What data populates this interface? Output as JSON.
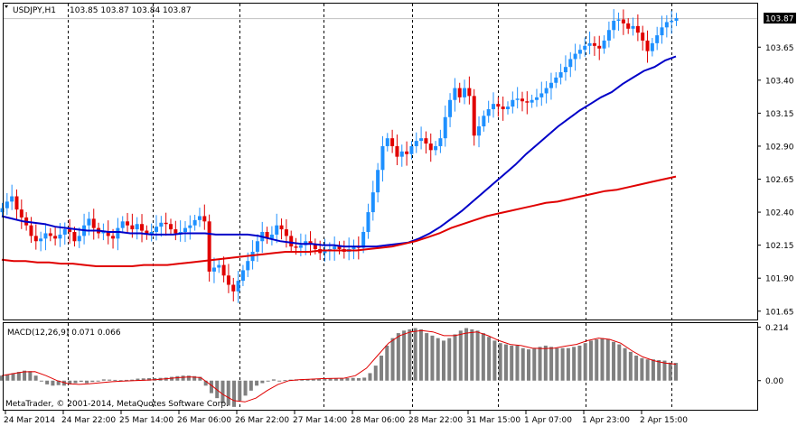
{
  "header": {
    "symbol": "USDJPY,H1",
    "ohlc": "103.85 103.87 103.84 103.87"
  },
  "macd_header": {
    "label": "MACD(12,26,9) 0.071 0.066"
  },
  "footer": {
    "copyright": "MetaTrader, © 2001-2014, MetaQuotes Software Corp."
  },
  "colors": {
    "background": "#ffffff",
    "bull_candle": "#1e90ff",
    "bear_candle": "#e00000",
    "ma_fast": "#0000c8",
    "ma_slow": "#e00000",
    "macd_histogram": "#808080",
    "macd_signal": "#e00000",
    "grid": "#000000"
  },
  "chart_data": [
    {
      "type": "candlestick",
      "title": "USDJPY,H1",
      "current_price": "103.87",
      "ylim": [
        101.58,
        103.98
      ],
      "y_ticks": [
        "103.87",
        "103.65",
        "103.40",
        "103.15",
        "102.90",
        "102.65",
        "102.40",
        "102.15",
        "101.90",
        "101.65"
      ],
      "x_ticks": [
        "24 Mar 2014",
        "24 Mar 22:00",
        "25 Mar 14:00",
        "26 Mar 06:00",
        "26 Mar 22:00",
        "27 Mar 14:00",
        "28 Mar 06:00",
        "28 Mar 22:00",
        "31 Mar 15:00",
        "1 Apr 07:00",
        "1 Apr 23:00",
        "2 Apr 15:00"
      ],
      "candles_close": [
        102.43,
        102.48,
        102.52,
        102.42,
        102.36,
        102.3,
        102.22,
        102.18,
        102.2,
        102.24,
        102.22,
        102.2,
        102.23,
        102.27,
        102.25,
        102.18,
        102.22,
        102.3,
        102.35,
        102.28,
        102.24,
        102.25,
        102.22,
        102.2,
        102.28,
        102.33,
        102.3,
        102.27,
        102.31,
        102.26,
        102.23,
        102.25,
        102.29,
        102.32,
        102.31,
        102.27,
        102.24,
        102.25,
        102.28,
        102.3,
        102.34,
        102.37,
        102.33,
        101.95,
        101.98,
        102.0,
        101.92,
        101.85,
        101.8,
        101.88,
        101.96,
        102.03,
        102.1,
        102.18,
        102.25,
        102.2,
        102.23,
        102.3,
        102.27,
        102.22,
        102.14,
        102.13,
        102.15,
        102.18,
        102.16,
        102.12,
        102.09,
        102.11,
        102.12,
        102.14,
        102.12,
        102.1,
        102.12,
        102.14,
        102.13,
        102.25,
        102.4,
        102.55,
        102.72,
        102.9,
        102.96,
        102.9,
        102.82,
        102.86,
        102.84,
        102.9,
        102.94,
        102.96,
        102.92,
        102.87,
        102.9,
        102.96,
        103.12,
        103.25,
        103.34,
        103.27,
        103.34,
        103.28,
        102.98,
        103.05,
        103.13,
        103.18,
        103.22,
        103.2,
        103.18,
        103.2,
        103.25,
        103.26,
        103.24,
        103.23,
        103.25,
        103.27,
        103.3,
        103.34,
        103.38,
        103.42,
        103.46,
        103.5,
        103.56,
        103.6,
        103.63,
        103.66,
        103.68,
        103.66,
        103.64,
        103.7,
        103.78,
        103.85,
        103.86,
        103.83,
        103.79,
        103.81,
        103.76,
        103.7,
        103.62,
        103.68,
        103.74,
        103.8,
        103.84,
        103.85,
        103.87
      ],
      "ma_fast": [
        102.37,
        102.35,
        102.33,
        102.32,
        102.31,
        102.29,
        102.28,
        102.27,
        102.26,
        102.26,
        102.25,
        102.25,
        102.24,
        102.24,
        102.23,
        102.23,
        102.23,
        102.24,
        102.24,
        102.24,
        102.23,
        102.23,
        102.23,
        102.23,
        102.22,
        102.2,
        102.18,
        102.17,
        102.16,
        102.16,
        102.15,
        102.15,
        102.14,
        102.14,
        102.14,
        102.14,
        102.15,
        102.16,
        102.17,
        102.2,
        102.24,
        102.29,
        102.35,
        102.41,
        102.48,
        102.55,
        102.62,
        102.69,
        102.76,
        102.84,
        102.91,
        102.98,
        103.05,
        103.11,
        103.17,
        103.22,
        103.27,
        103.31,
        103.37,
        103.42,
        103.47,
        103.5,
        103.55,
        103.58
      ],
      "ma_slow": [
        102.04,
        102.03,
        102.03,
        102.02,
        102.02,
        102.01,
        102.01,
        102.0,
        101.99,
        101.99,
        101.99,
        101.99,
        102.0,
        102.0,
        102.0,
        102.01,
        102.02,
        102.03,
        102.04,
        102.05,
        102.06,
        102.07,
        102.08,
        102.09,
        102.1,
        102.1,
        102.1,
        102.11,
        102.11,
        102.11,
        102.11,
        102.12,
        102.13,
        102.14,
        102.16,
        102.18,
        102.21,
        102.24,
        102.28,
        102.31,
        102.34,
        102.37,
        102.39,
        102.41,
        102.43,
        102.45,
        102.47,
        102.48,
        102.5,
        102.52,
        102.54,
        102.56,
        102.57,
        102.59,
        102.61,
        102.63,
        102.65,
        102.67
      ]
    },
    {
      "type": "bar",
      "title": "MACD(12,26,9) 0.071 0.066",
      "macd": 0.071,
      "signal": 0.066,
      "ylim": [
        -0.12,
        0.23
      ],
      "y_ticks": [
        "0.214",
        "0.00"
      ],
      "histogram": [
        0.02,
        0.025,
        0.03,
        0.035,
        0.04,
        0.038,
        0.02,
        0.0,
        -0.015,
        -0.02,
        -0.018,
        -0.02,
        -0.015,
        -0.01,
        -0.005,
        -0.01,
        -0.005,
        0.0,
        0.005,
        0.004,
        0.003,
        0.002,
        0.003,
        0.004,
        0.008,
        0.009,
        0.01,
        0.01,
        0.011,
        0.012,
        0.015,
        0.018,
        0.02,
        0.02,
        0.018,
        0.015,
        -0.02,
        -0.05,
        -0.07,
        -0.09,
        -0.1,
        -0.105,
        -0.08,
        -0.06,
        -0.04,
        -0.02,
        -0.01,
        0.0,
        0.005,
        0.0,
        0.002,
        0.004,
        0.005,
        0.005,
        0.006,
        0.008,
        0.007,
        0.009,
        0.01,
        0.008,
        0.009,
        0.01,
        0.011,
        0.01,
        0.012,
        0.03,
        0.06,
        0.1,
        0.14,
        0.17,
        0.19,
        0.2,
        0.205,
        0.21,
        0.205,
        0.19,
        0.18,
        0.17,
        0.16,
        0.17,
        0.185,
        0.2,
        0.21,
        0.205,
        0.2,
        0.19,
        0.175,
        0.16,
        0.15,
        0.145,
        0.14,
        0.14,
        0.13,
        0.125,
        0.13,
        0.135,
        0.14,
        0.135,
        0.13,
        0.13,
        0.13,
        0.135,
        0.14,
        0.15,
        0.16,
        0.165,
        0.17,
        0.165,
        0.155,
        0.145,
        0.13,
        0.115,
        0.1,
        0.09,
        0.085,
        0.085,
        0.082,
        0.08,
        0.072,
        0.071
      ],
      "signal_line": [
        0.02,
        0.028,
        0.035,
        0.036,
        0.02,
        0.0,
        -0.012,
        -0.015,
        -0.012,
        -0.008,
        -0.004,
        -0.002,
        0.0,
        0.002,
        0.004,
        0.008,
        0.012,
        0.015,
        0.012,
        -0.02,
        -0.055,
        -0.08,
        -0.085,
        -0.07,
        -0.04,
        -0.015,
        0.0,
        0.004,
        0.006,
        0.008,
        0.009,
        0.01,
        0.02,
        0.05,
        0.1,
        0.15,
        0.18,
        0.195,
        0.2,
        0.195,
        0.18,
        0.18,
        0.19,
        0.195,
        0.18,
        0.16,
        0.145,
        0.14,
        0.13,
        0.128,
        0.13,
        0.138,
        0.145,
        0.16,
        0.17,
        0.165,
        0.15,
        0.12,
        0.095,
        0.08,
        0.07,
        0.066
      ]
    }
  ]
}
